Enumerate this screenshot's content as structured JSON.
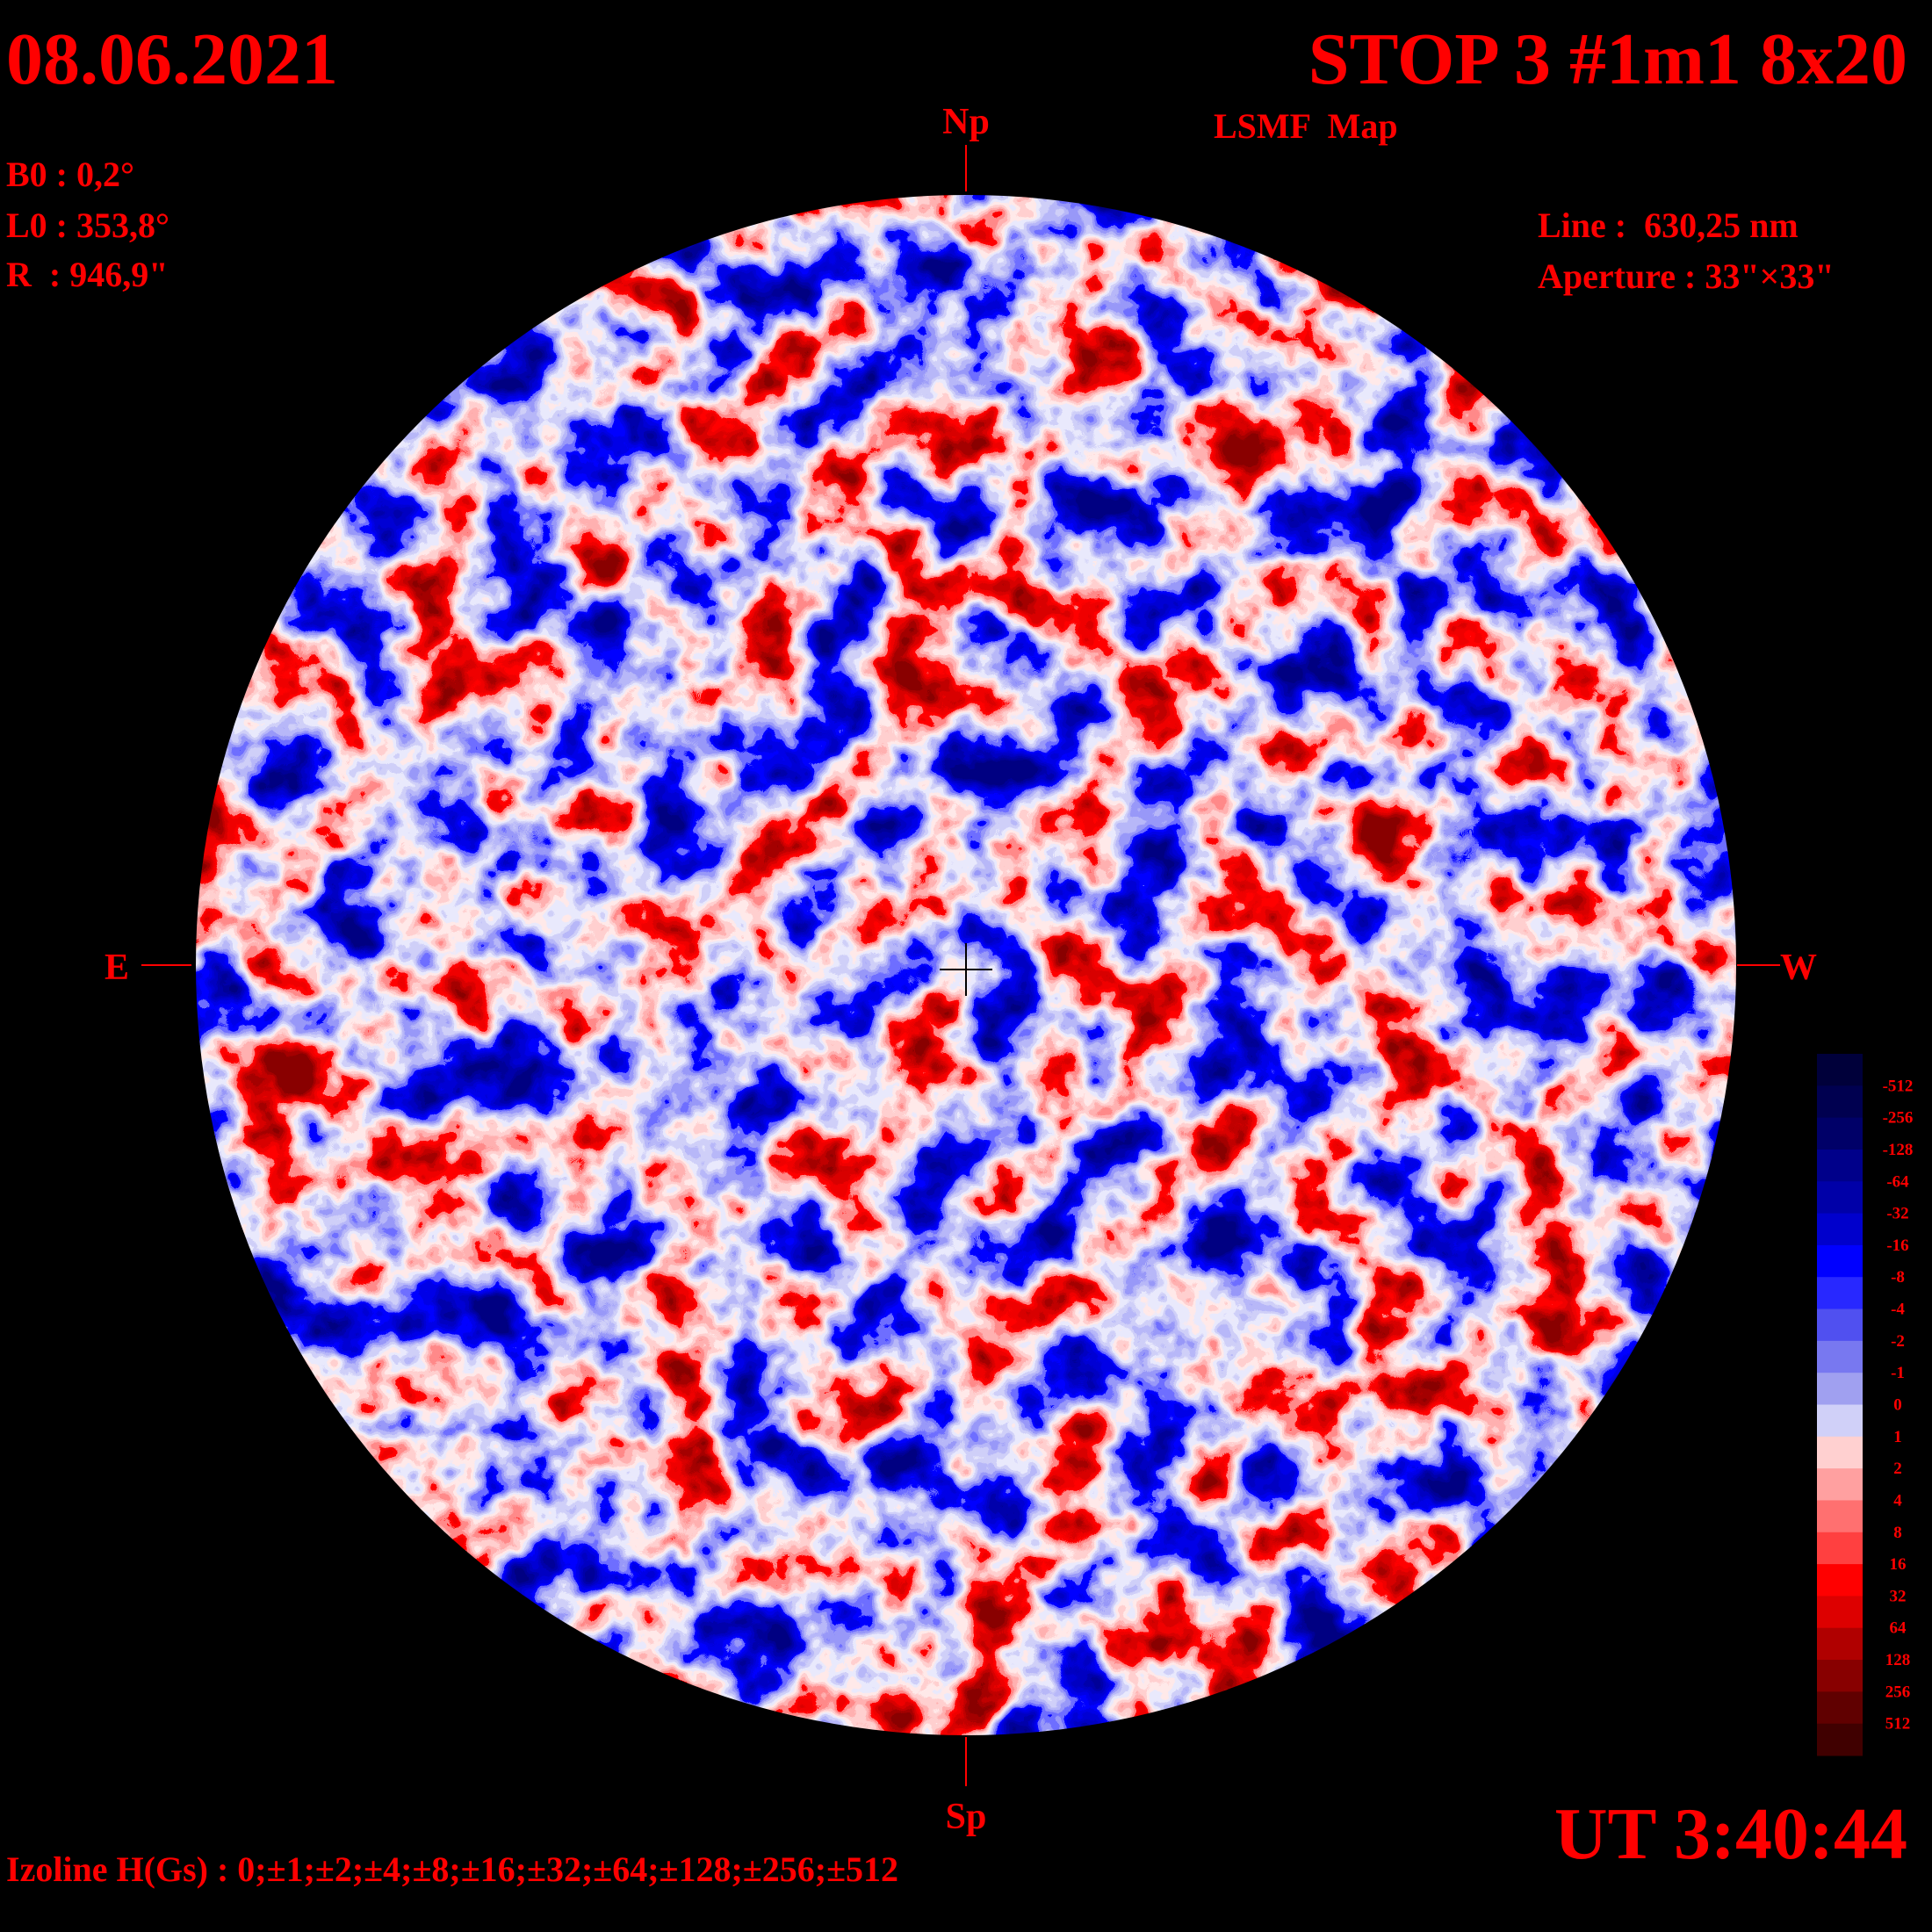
{
  "header": {
    "date": "08.06.2021",
    "title": "STOP 3 #1m1 8x20",
    "subtitle": "LSMF  Map"
  },
  "parameters": {
    "b0": "B0 : 0,2°",
    "l0": "L0 : 353,8°",
    "radius": "R  : 946,9\"",
    "line": "Line :  630,25 nm",
    "aperture": "Aperture : 33\"×33\""
  },
  "directions": {
    "north": "Np",
    "south": "Sp",
    "east": "E",
    "west": "W"
  },
  "colorbar": {
    "labels": [
      "-512",
      "-256",
      "-128",
      "-64",
      "-32",
      "-16",
      "-8",
      "-4",
      "-2",
      "-1",
      "0",
      "1",
      "2",
      "4",
      "8",
      "16",
      "32",
      "64",
      "128",
      "256",
      "512"
    ],
    "colors": [
      "#00003a",
      "#000050",
      "#000068",
      "#00008a",
      "#0000a8",
      "#0000cc",
      "#0000ff",
      "#2828ff",
      "#5050f0",
      "#7878f0",
      "#a0a0f0",
      "#d0d0f8",
      "#ffd0d0",
      "#ffa0a0",
      "#ff7070",
      "#ff4040",
      "#ff0000",
      "#dd0000",
      "#b00000",
      "#880000",
      "#600000",
      "#400000"
    ]
  },
  "footer": {
    "isolines": "Izoline H(Gs) : 0;±1;±2;±4;±8;±16;±32;±64;±128;±256;±512",
    "time": "UT 3:40:44"
  }
}
